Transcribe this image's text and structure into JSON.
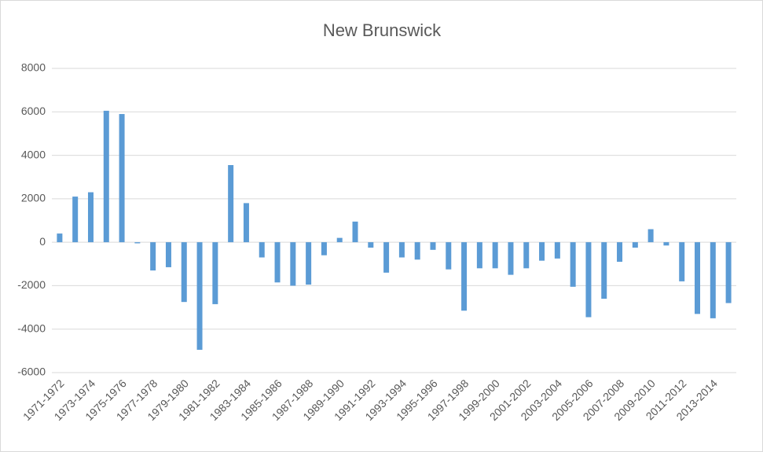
{
  "chart_data": {
    "type": "bar",
    "title": "New Brunswick",
    "categories": [
      "1971-1972",
      null,
      "1973-1974",
      null,
      "1975-1976",
      null,
      "1977-1978",
      null,
      "1979-1980",
      null,
      "1981-1982",
      null,
      "1983-1984",
      null,
      "1985-1986",
      null,
      "1987-1988",
      null,
      "1989-1990",
      null,
      "1991-1992",
      null,
      "1993-1994",
      null,
      "1995-1996",
      null,
      "1997-1998",
      null,
      "1999-2000",
      null,
      "2001-2002",
      null,
      "2003-2004",
      null,
      "2005-2006",
      null,
      "2007-2008",
      null,
      "2009-2010",
      null,
      "2011-2012",
      null,
      "2013-2014",
      null
    ],
    "values": [
      400,
      2100,
      2300,
      6050,
      5900,
      -50,
      -1300,
      -1150,
      -2750,
      -4950,
      -2850,
      3550,
      1800,
      -700,
      -1850,
      -2000,
      -1950,
      -600,
      200,
      950,
      -250,
      -1400,
      -700,
      -800,
      -350,
      -1250,
      -3150,
      -1200,
      -1200,
      -1500,
      -1200,
      -850,
      -750,
      -2050,
      -3450,
      -2600,
      -900,
      -250,
      600,
      -150,
      -1800,
      -3300,
      -3500,
      -2800
    ],
    "color": "#5b9bd5",
    "ylim": [
      -6000,
      8000
    ],
    "yticks": [
      -6000,
      -4000,
      -2000,
      0,
      2000,
      4000,
      6000,
      8000
    ],
    "grid": true
  }
}
